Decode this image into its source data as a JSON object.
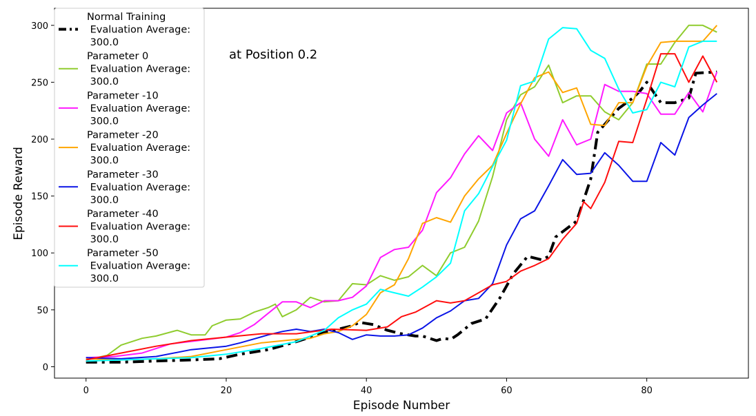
{
  "chart_data": {
    "type": "line",
    "title": "Protective Boundary\nat Position 0.2",
    "xlabel": "Episode Number",
    "ylabel": "Episode Reward",
    "xlim": [
      -4.5,
      94.5
    ],
    "ylim": [
      -10,
      315
    ],
    "xticks": [
      0,
      20,
      40,
      60,
      80
    ],
    "yticks": [
      0,
      50,
      100,
      150,
      200,
      250,
      300
    ],
    "grid": false,
    "legend_position": "upper-left",
    "series": [
      {
        "name": "Normal Training\n Evaluation Average:\n 300.0",
        "color": "#000000",
        "style": "dashdot",
        "width": 4,
        "x": [
          0,
          5,
          10,
          15,
          19,
          22,
          26,
          30,
          34,
          38,
          39,
          41,
          43,
          45,
          47,
          48,
          50,
          51,
          52,
          53,
          55,
          57,
          59,
          61,
          63,
          65,
          66,
          67,
          70,
          72,
          73,
          75,
          76,
          78,
          79,
          80,
          82,
          84,
          86,
          87,
          90
        ],
        "y": [
          4,
          4,
          5,
          6,
          7,
          11,
          15,
          22,
          30,
          36,
          39,
          37,
          32,
          29,
          27,
          27,
          23,
          25,
          24,
          28,
          38,
          42,
          60,
          82,
          97,
          94,
          97,
          114,
          128,
          165,
          206,
          220,
          227,
          236,
          242,
          250,
          232,
          232,
          236,
          258,
          259
        ]
      },
      {
        "name": "Parameter 0\n Evaluation Average:\n 300.0",
        "color": "#8fcc2e",
        "style": "solid",
        "width": 2,
        "x": [
          0,
          3,
          5,
          8,
          10,
          13,
          15,
          17,
          18,
          20,
          22,
          24,
          26,
          27,
          28,
          30,
          32,
          34,
          36,
          38,
          40,
          42,
          44,
          46,
          48,
          50,
          52,
          54,
          56,
          58,
          60,
          62,
          64,
          66,
          68,
          70,
          72,
          74,
          76,
          78,
          80,
          82,
          84,
          86,
          88,
          90
        ],
        "y": [
          6,
          10,
          19,
          25,
          27,
          32,
          28,
          28,
          36,
          41,
          42,
          48,
          52,
          55,
          44,
          50,
          61,
          57,
          58,
          73,
          72,
          80,
          76,
          79,
          89,
          80,
          100,
          105,
          128,
          167,
          217,
          239,
          246,
          265,
          232,
          238,
          238,
          224,
          217,
          232,
          266,
          266,
          285,
          300,
          300,
          294
        ]
      },
      {
        "name": "Parameter -10\n Evaluation Average:\n 300.0",
        "color": "#ff19ff",
        "style": "solid",
        "width": 2,
        "x": [
          0,
          4,
          8,
          12,
          16,
          20,
          22,
          24,
          26,
          28,
          30,
          32,
          34,
          36,
          38,
          40,
          42,
          44,
          46,
          48,
          50,
          52,
          54,
          56,
          58,
          60,
          62,
          64,
          66,
          68,
          70,
          72,
          74,
          76,
          78,
          80,
          82,
          84,
          86,
          88,
          90
        ],
        "y": [
          8,
          9,
          12,
          20,
          23,
          26,
          30,
          37,
          47,
          57,
          57,
          52,
          58,
          58,
          61,
          71,
          96,
          103,
          105,
          120,
          153,
          166,
          187,
          203,
          190,
          223,
          232,
          200,
          185,
          217,
          195,
          200,
          248,
          242,
          242,
          240,
          222,
          222,
          241,
          224,
          259
        ]
      },
      {
        "name": "Parameter -20\n Evaluation Average:\n 300.0",
        "color": "#ffa500",
        "style": "solid",
        "width": 2,
        "x": [
          0,
          5,
          10,
          15,
          20,
          25,
          30,
          32,
          34,
          36,
          38,
          40,
          42,
          44,
          46,
          48,
          50,
          52,
          54,
          56,
          58,
          60,
          62,
          64,
          66,
          68,
          70,
          72,
          74,
          76,
          78,
          80,
          82,
          84,
          86,
          88,
          90
        ],
        "y": [
          7,
          6,
          7,
          9,
          15,
          21,
          24,
          25,
          29,
          31,
          36,
          46,
          65,
          72,
          95,
          126,
          131,
          127,
          150,
          165,
          177,
          205,
          231,
          254,
          259,
          241,
          245,
          213,
          212,
          232,
          232,
          264,
          285,
          286,
          286,
          286,
          300
        ]
      },
      {
        "name": "Parameter -30\n Evaluation Average:\n 300.0",
        "color": "#0a14e6",
        "style": "solid",
        "width": 2,
        "x": [
          0,
          5,
          10,
          15,
          20,
          22,
          26,
          28,
          30,
          32,
          34,
          36,
          38,
          40,
          42,
          44,
          46,
          48,
          50,
          52,
          54,
          56,
          58,
          60,
          62,
          64,
          66,
          68,
          70,
          72,
          74,
          76,
          78,
          80,
          82,
          84,
          86,
          88,
          90
        ],
        "y": [
          8,
          7,
          9,
          15,
          18,
          21,
          28,
          31,
          33,
          31,
          33,
          30,
          24,
          28,
          27,
          27,
          28,
          34,
          43,
          49,
          58,
          60,
          73,
          107,
          130,
          137,
          159,
          182,
          169,
          170,
          188,
          177,
          163,
          163,
          197,
          186,
          219,
          230,
          240
        ]
      },
      {
        "name": "Parameter -40\n Evaluation Average:\n 300.0",
        "color": "#ff0d0d",
        "style": "solid",
        "width": 2,
        "x": [
          0,
          5,
          10,
          15,
          20,
          25,
          30,
          35,
          40,
          43,
          45,
          47,
          50,
          52,
          54,
          56,
          58,
          60,
          62,
          64,
          66,
          68,
          70,
          71,
          72,
          74,
          76,
          78,
          80,
          82,
          84,
          86,
          88,
          90
        ],
        "y": [
          6,
          12,
          18,
          23,
          26,
          29,
          29,
          33,
          32,
          35,
          44,
          48,
          58,
          56,
          58,
          65,
          72,
          75,
          84,
          89,
          95,
          112,
          126,
          145,
          139,
          162,
          198,
          197,
          235,
          275,
          275,
          250,
          273,
          250
        ]
      },
      {
        "name": "Parameter -50\n Evaluation Average:\n 300.0",
        "color": "#00ffff",
        "style": "solid",
        "width": 2,
        "x": [
          0,
          5,
          10,
          15,
          20,
          25,
          30,
          32,
          34,
          36,
          38,
          40,
          42,
          44,
          46,
          48,
          50,
          52,
          54,
          56,
          58,
          60,
          62,
          64,
          66,
          68,
          70,
          72,
          74,
          76,
          78,
          80,
          82,
          84,
          86,
          88,
          90
        ],
        "y": [
          5,
          6,
          7,
          8,
          11,
          16,
          22,
          27,
          32,
          43,
          50,
          55,
          68,
          65,
          62,
          70,
          79,
          91,
          137,
          152,
          176,
          199,
          247,
          251,
          288,
          298,
          297,
          278,
          271,
          244,
          223,
          226,
          250,
          246,
          281,
          286,
          286
        ]
      }
    ]
  }
}
